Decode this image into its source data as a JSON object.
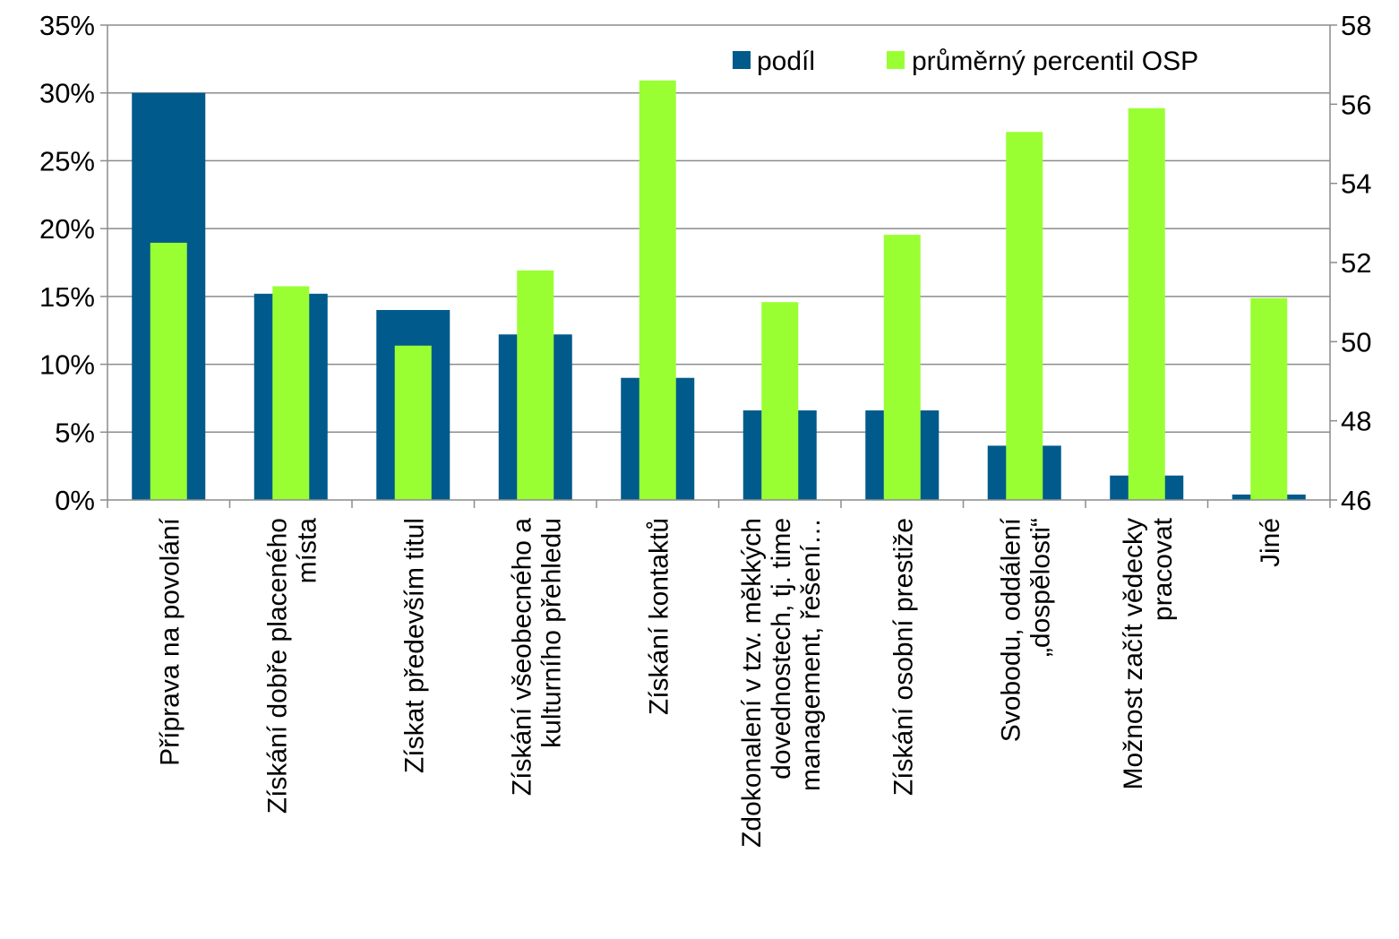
{
  "chart_data": {
    "type": "bar",
    "categories": [
      [
        "Příprava na povolání"
      ],
      [
        "Získání dobře placeného",
        "místa"
      ],
      [
        "Získat především titul"
      ],
      [
        "Získání všeobecného a",
        "kulturního přehledu"
      ],
      [
        "Získání kontaktů"
      ],
      [
        "Zdokonalení v tzv.  měkkých",
        "dovednostech, tj. time",
        "management, řešení…"
      ],
      [
        "Získání osobní prestiže"
      ],
      [
        "Svobodu, oddálení",
        "„dospělosti“"
      ],
      [
        "Možnost začít vědecky",
        "pracovat"
      ],
      [
        "Jiné"
      ]
    ],
    "series": [
      {
        "name": "podíl",
        "axis": "left",
        "color": "#005a8c",
        "values": [
          0.3,
          0.152,
          0.14,
          0.122,
          0.09,
          0.066,
          0.066,
          0.04,
          0.018,
          0.004
        ]
      },
      {
        "name": "průměrný percentil OSP",
        "axis": "right",
        "color": "#99ff33",
        "values": [
          52.5,
          51.4,
          49.9,
          51.8,
          56.6,
          51.0,
          52.7,
          55.3,
          55.9,
          51.1
        ]
      }
    ],
    "ylim_left": [
      0,
      0.35
    ],
    "yticks_left": [
      "0%",
      "5%",
      "10%",
      "15%",
      "20%",
      "25%",
      "30%",
      "35%"
    ],
    "ylim_right": [
      46,
      58
    ],
    "yticks_right": [
      "46",
      "48",
      "50",
      "52",
      "54",
      "56",
      "58"
    ],
    "grid": true,
    "legend": "top-right"
  }
}
